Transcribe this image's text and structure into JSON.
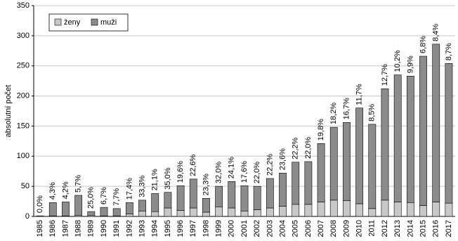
{
  "chart_data": {
    "type": "stacked_bar",
    "y_label": "absolutní počet",
    "categories": [
      "1985",
      "1986",
      "1987",
      "1988",
      "1989",
      "1990",
      "1991",
      "1992",
      "1993",
      "1994",
      "1995",
      "1996",
      "1997",
      "1998",
      "1999",
      "2000",
      "2001",
      "2002",
      "2003",
      "2004",
      "2005",
      "2006",
      "2007",
      "2008",
      "2009",
      "2010",
      "2011",
      "2012",
      "2013",
      "2014",
      "2015",
      "2016",
      "2017"
    ],
    "series": [
      {
        "name": "ženy",
        "color": "#c8c8c8",
        "values": [
          0,
          1,
          1,
          2,
          2,
          1,
          1,
          4,
          9,
          8,
          14,
          10,
          14,
          7,
          16,
          14,
          9,
          11,
          14,
          17,
          20,
          20,
          24,
          27,
          26,
          21,
          13,
          27,
          24,
          23,
          18,
          24,
          22
        ]
      },
      {
        "name": "muži",
        "color": "#8c8c8c",
        "values": [
          1,
          22,
          23,
          33,
          6,
          14,
          12,
          19,
          18,
          30,
          26,
          41,
          48,
          23,
          34,
          44,
          42,
          39,
          49,
          55,
          70,
          71,
          97,
          121,
          130,
          159,
          140,
          185,
          211,
          210,
          248,
          262,
          232
        ]
      }
    ],
    "share_labels": [
      "0,0%",
      "4,3%",
      "4,2%",
      "5,7%",
      "25,0%",
      "6,7%",
      "7,7%",
      "17,4%",
      "33,3%",
      "21,1%",
      "35,0%",
      "19,6%",
      "22,6%",
      "23,3%",
      "32,0%",
      "24,1%",
      "17,6%",
      "22,0%",
      "22,2%",
      "23,6%",
      "22,2%",
      "22,0%",
      "19,8%",
      "18,2%",
      "16,7%",
      "11,7%",
      "8,5%",
      "12,7%",
      "10,2%",
      "9,9%",
      "6,8%",
      "8,4%",
      "8,7%"
    ],
    "ylim": [
      0,
      350
    ],
    "yticks": [
      0,
      50,
      100,
      150,
      200,
      250,
      300,
      350
    ],
    "grid": true,
    "legend": "top-left"
  }
}
